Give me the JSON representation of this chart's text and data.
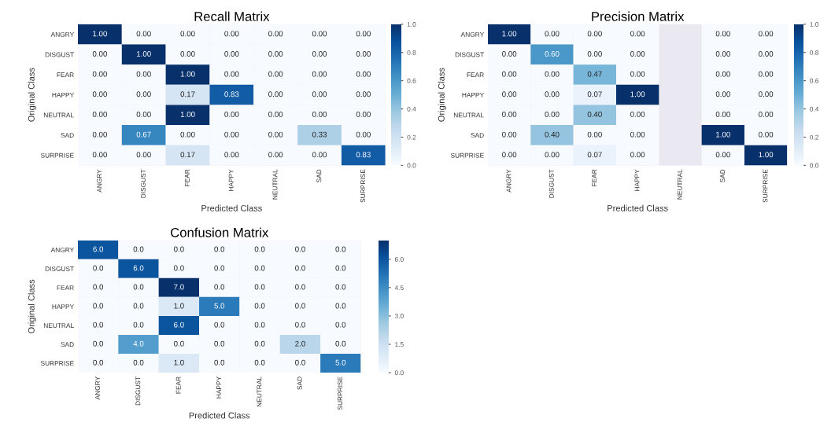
{
  "chart_data": [
    {
      "type": "heatmap",
      "title": "Recall Matrix",
      "xlabel": "Predicted Class",
      "ylabel": "Original Class",
      "categories": [
        "ANGRY",
        "DISGUST",
        "FEAR",
        "HAPPY",
        "NEUTRAL",
        "SAD",
        "SURPRISE"
      ],
      "y_categories": [
        "ANGRY",
        "DISGUST",
        "FEAR",
        "HAPPY",
        "NEUTRAL",
        "SAD",
        "SURPRISE"
      ],
      "cells": [
        [
          1.0,
          0,
          0,
          0,
          0,
          0,
          0
        ],
        [
          0,
          1.0,
          0,
          0,
          0,
          0,
          0
        ],
        [
          0,
          0,
          1.0,
          0,
          0,
          0,
          0
        ],
        [
          0,
          0,
          0.17,
          0.83,
          0,
          0,
          0
        ],
        [
          0,
          0,
          1.0,
          0,
          0,
          0,
          0
        ],
        [
          0,
          0.67,
          0,
          0,
          0,
          0.33,
          0
        ],
        [
          0,
          0,
          0.17,
          0,
          0,
          0,
          0.83
        ]
      ],
      "cell_labels": [
        [
          "1.00",
          "0.00",
          "0.00",
          "0.00",
          "0.00",
          "0.00",
          "0.00"
        ],
        [
          "0.00",
          "1.00",
          "0.00",
          "0.00",
          "0.00",
          "0.00",
          "0.00"
        ],
        [
          "0.00",
          "0.00",
          "1.00",
          "0.00",
          "0.00",
          "0.00",
          "0.00"
        ],
        [
          "0.00",
          "0.00",
          "0.17",
          "0.83",
          "0.00",
          "0.00",
          "0.00"
        ],
        [
          "0.00",
          "0.00",
          "1.00",
          "0.00",
          "0.00",
          "0.00",
          "0.00"
        ],
        [
          "0.00",
          "0.67",
          "0.00",
          "0.00",
          "0.00",
          "0.33",
          "0.00"
        ],
        [
          "0.00",
          "0.00",
          "0.17",
          "0.00",
          "0.00",
          "0.00",
          "0.83"
        ]
      ],
      "clim": [
        0,
        1
      ],
      "cticks": [
        {
          "value": 0,
          "label": "0.0"
        },
        0.2,
        0.4,
        0.6,
        0.8,
        {
          "value": 1,
          "label": "1.0"
        }
      ]
    },
    {
      "type": "heatmap",
      "title": "Precision Matrix",
      "xlabel": "Predicted Class",
      "ylabel": "Original Class",
      "categories": [
        "ANGRY",
        "DISGUST",
        "FEAR",
        "HAPPY",
        "NEUTRAL",
        "SAD",
        "SURPRISE"
      ],
      "y_categories": [
        "ANGRY",
        "DISGUST",
        "FEAR",
        "HAPPY",
        "NEUTRAL",
        "SAD",
        "SURPRISE"
      ],
      "cells": [
        [
          1.0,
          0,
          0,
          0,
          null,
          0,
          0
        ],
        [
          0,
          0.6,
          0,
          0,
          null,
          0,
          0
        ],
        [
          0,
          0,
          0.47,
          0,
          null,
          0,
          0
        ],
        [
          0,
          0,
          0.07,
          1.0,
          null,
          0,
          0
        ],
        [
          0,
          0,
          0.4,
          0,
          null,
          0,
          0
        ],
        [
          0,
          0.4,
          0,
          0,
          null,
          1.0,
          0
        ],
        [
          0,
          0,
          0.07,
          0,
          null,
          0,
          1.0
        ]
      ],
      "cell_labels": [
        [
          "1.00",
          "0.00",
          "0.00",
          "0.00",
          null,
          "0.00",
          "0.00"
        ],
        [
          "0.00",
          "0.60",
          "0.00",
          "0.00",
          null,
          "0.00",
          "0.00"
        ],
        [
          "0.00",
          "0.00",
          "0.47",
          "0.00",
          null,
          "0.00",
          "0.00"
        ],
        [
          "0.00",
          "0.00",
          "0.07",
          "1.00",
          null,
          "0.00",
          "0.00"
        ],
        [
          "0.00",
          "0.00",
          "0.40",
          "0.00",
          null,
          "0.00",
          "0.00"
        ],
        [
          "0.00",
          "0.40",
          "0.00",
          "0.00",
          null,
          "1.00",
          "0.00"
        ],
        [
          "0.00",
          "0.00",
          "0.07",
          "0.00",
          null,
          "0.00",
          "1.00"
        ]
      ],
      "clim": [
        0,
        1
      ],
      "cticks": [
        {
          "value": 0,
          "label": "0.0"
        },
        0.2,
        0.4,
        0.6,
        0.8,
        {
          "value": 1,
          "label": "1.0"
        }
      ]
    },
    {
      "type": "heatmap",
      "title": "Confusion Matrix",
      "xlabel": "Predicted Class",
      "ylabel": "Original Class",
      "categories": [
        "ANGRY",
        "DISGUST",
        "FEAR",
        "HAPPY",
        "NEUTRAL",
        "SAD",
        "SURPRISE"
      ],
      "y_categories": [
        "ANGRY",
        "DISGUST",
        "FEAR",
        "HAPPY",
        "NEUTRAL",
        "SAD",
        "SURPRISE"
      ],
      "cells": [
        [
          6,
          0,
          0,
          0,
          0,
          0,
          0
        ],
        [
          0,
          6,
          0,
          0,
          0,
          0,
          0
        ],
        [
          0,
          0,
          7,
          0,
          0,
          0,
          0
        ],
        [
          0,
          0,
          1,
          5,
          0,
          0,
          0
        ],
        [
          0,
          0,
          6,
          0,
          0,
          0,
          0
        ],
        [
          0,
          4,
          0,
          0,
          0,
          2,
          0
        ],
        [
          0,
          0,
          1,
          0,
          0,
          0,
          5
        ]
      ],
      "cell_labels": [
        [
          "6.0",
          "0.0",
          "0.0",
          "0.0",
          "0.0",
          "0.0",
          "0.0"
        ],
        [
          "0.0",
          "6.0",
          "0.0",
          "0.0",
          "0.0",
          "0.0",
          "0.0"
        ],
        [
          "0.0",
          "0.0",
          "7.0",
          "0.0",
          "0.0",
          "0.0",
          "0.0"
        ],
        [
          "0.0",
          "0.0",
          "1.0",
          "5.0",
          "0.0",
          "0.0",
          "0.0"
        ],
        [
          "0.0",
          "0.0",
          "6.0",
          "0.0",
          "0.0",
          "0.0",
          "0.0"
        ],
        [
          "0.0",
          "4.0",
          "0.0",
          "0.0",
          "0.0",
          "2.0",
          "0.0"
        ],
        [
          "0.0",
          "0.0",
          "1.0",
          "0.0",
          "0.0",
          "0.0",
          "5.0"
        ]
      ],
      "clim": [
        0,
        7
      ],
      "cticks": [
        {
          "value": 0,
          "label": "0.0"
        },
        {
          "value": 1.5,
          "label": "1.5"
        },
        {
          "value": 3,
          "label": "3.0"
        },
        {
          "value": 4.5,
          "label": "4.5"
        },
        {
          "value": 6,
          "label": "6.0"
        }
      ]
    }
  ]
}
